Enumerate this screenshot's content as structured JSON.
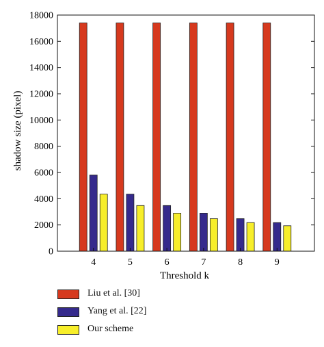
{
  "colors": {
    "series": [
      "#d6391e",
      "#352a8c",
      "#f7ee2a"
    ],
    "axis": "#111111"
  },
  "chart_data": {
    "type": "bar",
    "xlabel": "Threshold k",
    "ylabel": "shadow size (pixel)",
    "ylim": [
      0,
      18000
    ],
    "yticks": [
      0,
      2000,
      4000,
      6000,
      8000,
      10000,
      12000,
      14000,
      16000,
      18000
    ],
    "categories": [
      "4",
      "5",
      "6",
      "7",
      "8",
      "9"
    ],
    "grid": false,
    "legend_position": "bottom",
    "series": [
      {
        "name": "Liu et al. [30]",
        "values": [
          17400,
          17400,
          17400,
          17400,
          17400,
          17400
        ]
      },
      {
        "name": "Yang et al. [22]",
        "values": [
          5800,
          4350,
          3480,
          2900,
          2480,
          2180
        ]
      },
      {
        "name": "Our scheme",
        "values": [
          4350,
          3480,
          2900,
          2480,
          2180,
          1940
        ]
      }
    ]
  }
}
